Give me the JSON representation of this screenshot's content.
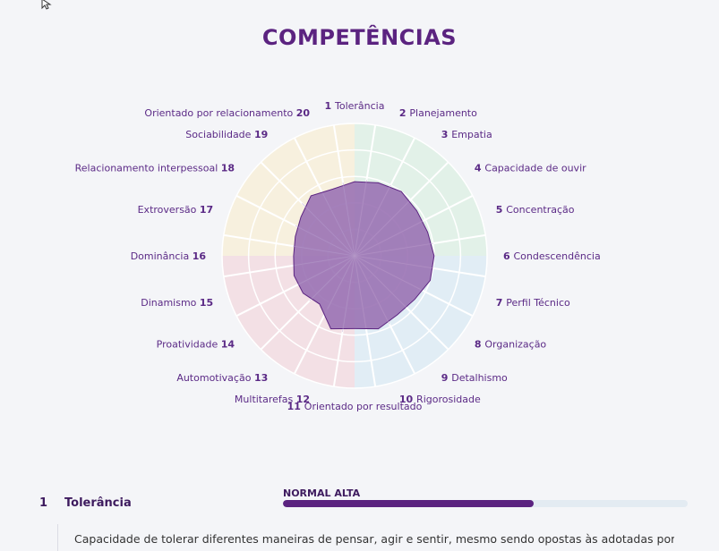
{
  "page": {
    "title": "COMPETÊNCIAS"
  },
  "colors": {
    "accent": "#5b2380",
    "radar_fill": "#9a72b4",
    "green_sector": "#e2f1e8",
    "blue_sector": "#e1edf5",
    "pink_sector": "#f3e0e5",
    "yellow_sector": "#f7f0de"
  },
  "chart_data": {
    "type": "radar",
    "title": "COMPETÊNCIAS",
    "scale": [
      0,
      100
    ],
    "categories": [
      {
        "n": "1",
        "label": "Tolerância"
      },
      {
        "n": "2",
        "label": "Planejamento"
      },
      {
        "n": "3",
        "label": "Empatia"
      },
      {
        "n": "4",
        "label": "Capacidade de ouvir"
      },
      {
        "n": "5",
        "label": "Concentração"
      },
      {
        "n": "6",
        "label": "Condescendência"
      },
      {
        "n": "7",
        "label": "Perfil Técnico"
      },
      {
        "n": "8",
        "label": "Organização"
      },
      {
        "n": "9",
        "label": "Detalhismo"
      },
      {
        "n": "10",
        "label": "Rigorosidade"
      },
      {
        "n": "11",
        "label": "Orientado por resultado"
      },
      {
        "n": "12",
        "label": "Multitarefas"
      },
      {
        "n": "13",
        "label": "Automotivação"
      },
      {
        "n": "14",
        "label": "Proatividade"
      },
      {
        "n": "15",
        "label": "Dinamismo"
      },
      {
        "n": "16",
        "label": "Dominância"
      },
      {
        "n": "17",
        "label": "Extroversão"
      },
      {
        "n": "18",
        "label": "Relacionamento interpessoal"
      },
      {
        "n": "19",
        "label": "Sociabilidade"
      },
      {
        "n": "20",
        "label": "Orientado por relacionamento"
      }
    ],
    "values": [
      56,
      58,
      60,
      58,
      58,
      60,
      60,
      56,
      55,
      58,
      55,
      58,
      45,
      48,
      48,
      46,
      47,
      50,
      56,
      53
    ],
    "groups": [
      {
        "from": 0,
        "to": 5,
        "color": "green"
      },
      {
        "from": 5,
        "to": 10,
        "color": "blue"
      },
      {
        "from": 10,
        "to": 15,
        "color": "pink"
      },
      {
        "from": 15,
        "to": 20,
        "color": "yellow"
      }
    ]
  },
  "detail": {
    "number": "1",
    "name": "Tolerância",
    "level_label": "NORMAL ALTA",
    "level_fraction": 0.62,
    "description": "Capacidade de tolerar diferentes maneiras de pensar, agir e sentir, mesmo sendo opostas às adotadas por si"
  }
}
